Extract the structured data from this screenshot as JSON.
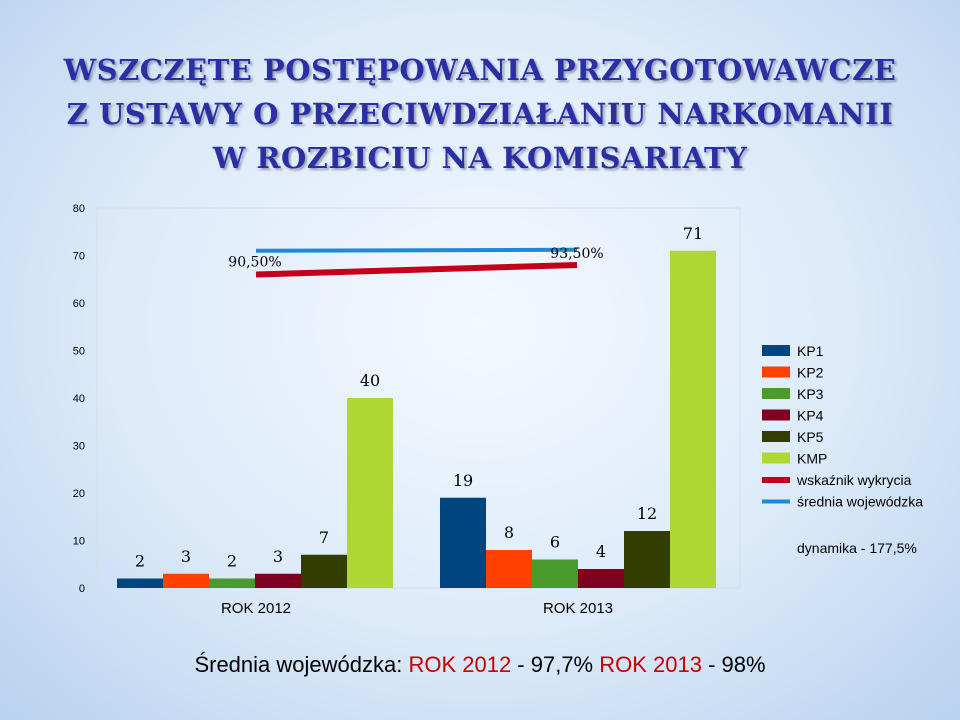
{
  "title_lines": [
    "WSZCZĘTE POSTĘPOWANIA PRZYGOTOWAWCZE",
    "Z USTAWY O PRZECIWDZIAŁANIU NARKOMANII",
    "W ROZBICIU NA KOMISARIATY"
  ],
  "chart_data": {
    "type": "bar",
    "categories": [
      "ROK 2012",
      "ROK 2013"
    ],
    "series": [
      {
        "name": "KP1",
        "color": "#00457e",
        "values": [
          2,
          19
        ]
      },
      {
        "name": "KP2",
        "color": "#ff4000",
        "values": [
          3,
          8
        ]
      },
      {
        "name": "KP3",
        "color": "#4a9a2c",
        "values": [
          2,
          6
        ]
      },
      {
        "name": "KP4",
        "color": "#800020",
        "values": [
          3,
          4
        ]
      },
      {
        "name": "KP5",
        "color": "#333d00",
        "values": [
          7,
          12
        ]
      },
      {
        "name": "KMP",
        "color": "#afd733",
        "values": [
          40,
          71
        ]
      }
    ],
    "lines": [
      {
        "name": "wskaźnik wykrycia",
        "color": "#c4001a",
        "values": [
          66,
          68
        ]
      },
      {
        "name": "średnia wojewódzka",
        "color": "#1d8ad8",
        "values": [
          71,
          71.2
        ]
      }
    ],
    "line_labels": [
      "90,50%",
      "93,50%"
    ],
    "y_ticks": [
      0,
      10,
      20,
      30,
      40,
      50,
      60,
      70,
      80
    ],
    "ylim": [
      0,
      80
    ],
    "grid": false,
    "legend_position": "right",
    "legend_note": "dynamika - 177,5%"
  },
  "footer": {
    "prefix": "Średnia wojewódzka: ",
    "year1_label": "ROK 2012",
    "year1_value": " - 97,7%  ",
    "year2_label": "ROK 2013",
    "year2_value": " - 98%"
  }
}
